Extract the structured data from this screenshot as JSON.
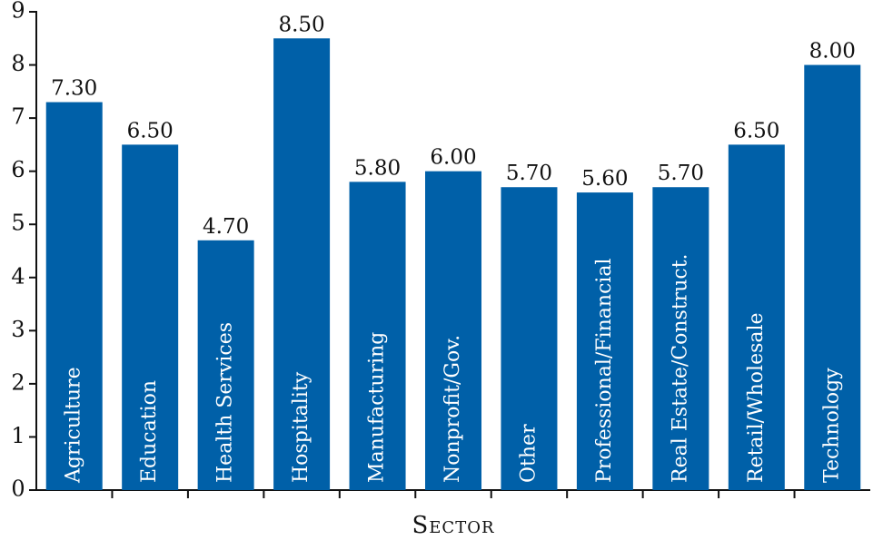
{
  "chart_data": {
    "type": "bar",
    "categories": [
      "Agriculture",
      "Education",
      "Health Services",
      "Hospitality",
      "Manufacturing",
      "Nonprofit/Gov.",
      "Other",
      "Professional/Financial",
      "Real Estate/Construct.",
      "Retail/Wholesale",
      "Technology"
    ],
    "values": [
      7.3,
      6.5,
      4.7,
      8.5,
      5.8,
      6.0,
      5.7,
      5.6,
      5.7,
      6.5,
      8.0
    ],
    "value_labels": [
      "7.30",
      "6.50",
      "4.70",
      "8.50",
      "5.80",
      "6.00",
      "5.70",
      "5.60",
      "5.70",
      "6.50",
      "8.00"
    ],
    "color": "#0060a8",
    "x_label": "Sector",
    "ylim": [
      0,
      9
    ],
    "yticks": [
      0,
      1,
      2,
      3,
      4,
      5,
      6,
      7,
      8,
      9
    ]
  }
}
